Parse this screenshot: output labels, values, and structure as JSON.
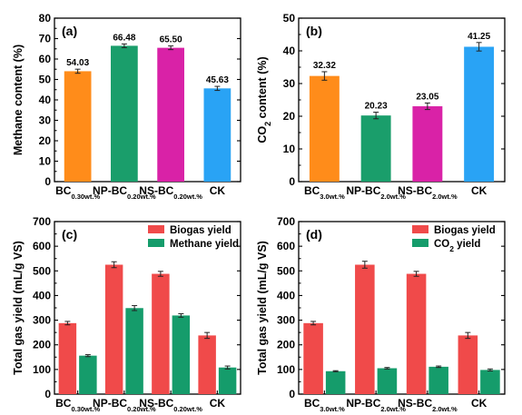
{
  "chart_data": [
    {
      "panel": "(a)",
      "type": "bar",
      "ylabel": "Methane content (%)",
      "ylim": [
        0,
        80
      ],
      "yticks": [
        0,
        10,
        20,
        30,
        40,
        50,
        60,
        70,
        80
      ],
      "categories": [
        {
          "base": "BC",
          "sub": "0.30wt.%"
        },
        {
          "base": "NP-BC",
          "sub": "0.20wt.%"
        },
        {
          "base": "NS-BC",
          "sub": "0.20wt.%"
        },
        {
          "base": "CK",
          "sub": ""
        }
      ],
      "values": [
        54.03,
        66.48,
        65.5,
        45.63
      ],
      "errors": [
        1.0,
        0.9,
        0.9,
        1.0
      ],
      "value_labels": [
        "54.03",
        "66.48",
        "65.50",
        "45.63"
      ],
      "colors": [
        "#ff8c1a",
        "#1a9e6b",
        "#d922a7",
        "#29a3f5"
      ]
    },
    {
      "panel": "(b)",
      "type": "bar",
      "ylabel": "CO2 content (%)",
      "ylim": [
        0,
        50
      ],
      "yticks": [
        0,
        10,
        20,
        30,
        40,
        50
      ],
      "categories": [
        {
          "base": "BC",
          "sub": "3.0wt.%"
        },
        {
          "base": "NP-BC",
          "sub": "2.0wt.%"
        },
        {
          "base": "NS-BC",
          "sub": "2.0wt.%"
        },
        {
          "base": "CK",
          "sub": ""
        }
      ],
      "values": [
        32.32,
        20.23,
        23.05,
        41.25
      ],
      "errors": [
        1.3,
        1.0,
        1.0,
        1.3
      ],
      "value_labels": [
        "32.32",
        "20.23",
        "23.05",
        "41.25"
      ],
      "colors": [
        "#ff8c1a",
        "#1a9e6b",
        "#d922a7",
        "#29a3f5"
      ]
    },
    {
      "panel": "(c)",
      "type": "bar",
      "ylabel": "Total gas yield (mL/g VS)",
      "ylim": [
        0,
        700
      ],
      "yticks": [
        0,
        100,
        200,
        300,
        400,
        500,
        600,
        700
      ],
      "categories": [
        {
          "base": "BC",
          "sub": "0.30wt.%"
        },
        {
          "base": "NP-BC",
          "sub": "0.20wt.%"
        },
        {
          "base": "NS-BC",
          "sub": "0.20wt.%"
        },
        {
          "base": "CK",
          "sub": ""
        }
      ],
      "series": [
        {
          "name": "Biogas yield",
          "values": [
            288,
            525,
            488,
            238
          ],
          "errors": [
            7,
            12,
            10,
            12
          ],
          "color": "#f04a4a"
        },
        {
          "name": "Methane yield",
          "values": [
            156,
            349,
            319,
            108
          ],
          "errors": [
            4,
            10,
            7,
            6
          ],
          "color": "#159c6b"
        }
      ],
      "legend": "top-right"
    },
    {
      "panel": "(d)",
      "type": "bar",
      "ylabel": "Total gas yield (mL/g VS)",
      "ylim": [
        0,
        700
      ],
      "yticks": [
        0,
        100,
        200,
        300,
        400,
        500,
        600,
        700
      ],
      "categories": [
        {
          "base": "BC",
          "sub": "3.0wt.%"
        },
        {
          "base": "NP-BC",
          "sub": "2.0wt.%"
        },
        {
          "base": "NS-BC",
          "sub": "2.0wt.%"
        },
        {
          "base": "CK",
          "sub": ""
        }
      ],
      "series": [
        {
          "name": "Biogas yield",
          "values": [
            288,
            525,
            488,
            238
          ],
          "errors": [
            7,
            14,
            10,
            12
          ],
          "color": "#f04a4a"
        },
        {
          "name": "CO2 yield",
          "values": [
            93,
            105,
            111,
            98
          ],
          "errors": [
            2,
            3,
            3,
            4
          ],
          "color": "#159c6b"
        }
      ],
      "legend": "top-right"
    }
  ]
}
